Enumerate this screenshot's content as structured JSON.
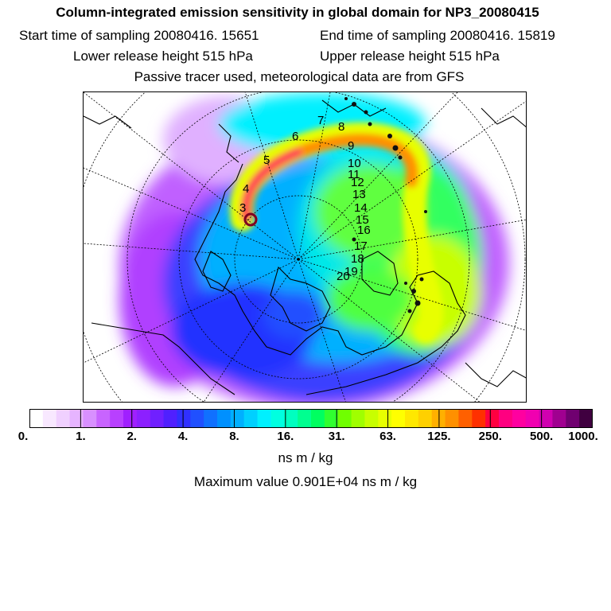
{
  "header": {
    "title": "Column-integrated emission sensitivity in global domain for NP3_20080415",
    "start_time": "Start time of sampling 20080416. 15651",
    "end_time": "End time of sampling 20080416. 15819",
    "lower_height": "Lower release height  515 hPa",
    "upper_height": "Upper release height  515 hPa",
    "tracer_info": "Passive tracer used, meteorological data are from GFS"
  },
  "trajectory_labels": [
    "3",
    "4",
    "5",
    "6",
    "7",
    "8",
    "9",
    "10",
    "11",
    "12",
    "13",
    "14",
    "15",
    "16",
    "17",
    "18",
    "19",
    "20"
  ],
  "colorbar": {
    "ticks": [
      "0.",
      "1.",
      "2.",
      "4.",
      "8.",
      "16.",
      "31.",
      "63.",
      "125.",
      "250.",
      "500.",
      "1000."
    ],
    "colors": [
      "#ffffff",
      "#f8e8ff",
      "#f0d0ff",
      "#e6b4ff",
      "#d890ff",
      "#c864ff",
      "#b840ff",
      "#a020ff",
      "#8c20ff",
      "#7020ff",
      "#5020ff",
      "#3030ff",
      "#2050ff",
      "#1070ff",
      "#0090ff",
      "#00b0ff",
      "#00d0ff",
      "#00f0ff",
      "#00ffe0",
      "#00ffc0",
      "#00ff90",
      "#00ff60",
      "#30ff30",
      "#70ff00",
      "#a0ff00",
      "#c8ff00",
      "#e8ff00",
      "#ffff00",
      "#ffe800",
      "#ffd000",
      "#ffb000",
      "#ff9000",
      "#ff6000",
      "#ff3000",
      "#ff0040",
      "#ff0080",
      "#ff00a0",
      "#f000b0",
      "#d000b0",
      "#a00090",
      "#700070",
      "#400040"
    ],
    "units": "ns m / kg",
    "max_value": "Maximum value  0.901E+04 ns m / kg"
  }
}
